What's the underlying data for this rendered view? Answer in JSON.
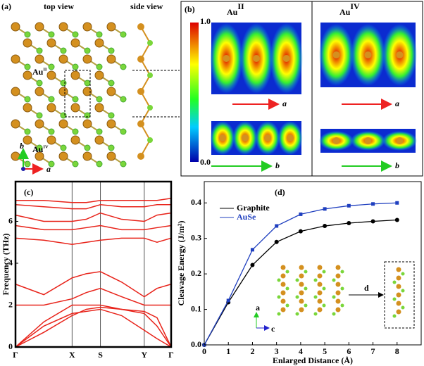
{
  "panels": {
    "a": {
      "label": "(a)",
      "top_view": "top view",
      "side_view": "side view",
      "au2": {
        "text": "Au",
        "sup": "II"
      },
      "au4": {
        "text": "Au",
        "sup": "IV"
      },
      "axis_b": "b",
      "axis_a": "a"
    },
    "b": {
      "label": "(b)",
      "title_left": {
        "text": "Au",
        "sup": "II"
      },
      "title_right": {
        "text": "Au",
        "sup": "IV"
      },
      "colorbar_top": "1.0",
      "colorbar_bottom": "0.0",
      "left_a": "a",
      "left_b": "b",
      "right_a": "a",
      "right_b": "b"
    }
  },
  "chart_data": [
    {
      "type": "line",
      "panel_label": "(c)",
      "y_label": "Frequency (THz)",
      "x": [
        0,
        40,
        80,
        100,
        120,
        150,
        182,
        200,
        220
      ],
      "xlim": [
        0,
        220
      ],
      "xticks": [
        {
          "value": 0,
          "label": "Γ"
        },
        {
          "value": 80,
          "label": "X"
        },
        {
          "value": 120,
          "label": "S"
        },
        {
          "value": 182,
          "label": "Y"
        },
        {
          "value": 220,
          "label": "Γ"
        }
      ],
      "ylim": [
        0,
        7.9
      ],
      "yticks": [
        0,
        2,
        4,
        6
      ],
      "color": "#e8231a",
      "series": [
        {
          "values": [
            0,
            1.0,
            1.6,
            1.7,
            1.8,
            1.5,
            0.8,
            0.4,
            0
          ]
        },
        {
          "values": [
            0,
            0.7,
            1.5,
            1.8,
            1.9,
            1.8,
            1.6,
            1.0,
            0
          ]
        },
        {
          "values": [
            0,
            1.2,
            2.0,
            2.0,
            2.0,
            1.8,
            1.7,
            1.4,
            0
          ]
        },
        {
          "values": [
            2.0,
            2.0,
            2.3,
            2.6,
            2.8,
            2.4,
            2.0,
            2.0,
            2.0
          ]
        },
        {
          "values": [
            3.0,
            2.5,
            3.3,
            3.5,
            3.6,
            3.1,
            2.4,
            2.8,
            3.0
          ]
        },
        {
          "values": [
            5.2,
            5.1,
            4.9,
            5.0,
            5.1,
            5.2,
            5.2,
            5.0,
            5.2
          ]
        },
        {
          "values": [
            5.8,
            5.6,
            5.6,
            5.7,
            5.8,
            5.6,
            5.6,
            5.7,
            5.8
          ]
        },
        {
          "values": [
            6.3,
            6.0,
            6.0,
            6.1,
            6.4,
            6.1,
            6.0,
            6.3,
            6.4
          ]
        },
        {
          "values": [
            6.8,
            6.7,
            6.6,
            6.6,
            6.8,
            6.7,
            6.7,
            6.8,
            6.8
          ]
        },
        {
          "values": [
            7.0,
            7.0,
            6.9,
            6.9,
            7.0,
            7.0,
            7.0,
            7.0,
            7.1
          ]
        }
      ]
    },
    {
      "type": "line",
      "panel_label": "(d)",
      "x_label": "Enlarged Distance (Å)",
      "y_label": "Cleavage Energy (J/m²)",
      "x": [
        0,
        1,
        2,
        3,
        4,
        5,
        6,
        7,
        8
      ],
      "xlim": [
        0,
        9
      ],
      "xticks": [
        0,
        1,
        2,
        3,
        4,
        5,
        6,
        7,
        8
      ],
      "ylim": [
        0,
        0.46
      ],
      "yticks": [
        {
          "value": 0,
          "label": "0.0"
        },
        0.1,
        0.2,
        0.3,
        0.4
      ],
      "legend": "upper left",
      "annotations": [
        "d",
        "a",
        "c"
      ],
      "series": [
        {
          "name": "Graphite",
          "color": "#000000",
          "marker": "circle",
          "values": [
            0,
            0.12,
            0.225,
            0.29,
            0.32,
            0.335,
            0.343,
            0.348,
            0.352
          ]
        },
        {
          "name": "AuSe",
          "color": "#1f3fbf",
          "marker": "square",
          "values": [
            0,
            0.125,
            0.268,
            0.335,
            0.368,
            0.383,
            0.392,
            0.397,
            0.4
          ]
        }
      ]
    }
  ]
}
